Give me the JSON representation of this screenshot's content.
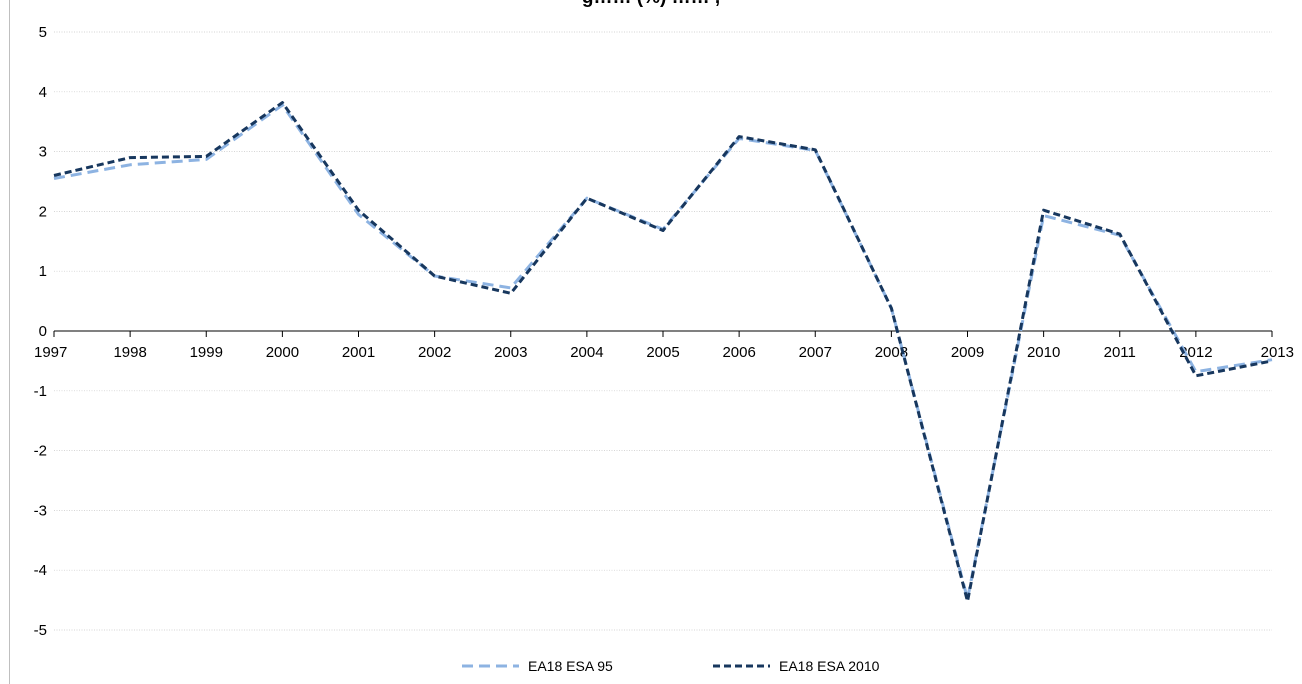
{
  "chart_data": {
    "type": "line",
    "title": "g…… (%) …… ,",
    "x": [
      "1997",
      "1998",
      "1999",
      "2000",
      "2001",
      "2002",
      "2003",
      "2004",
      "2005",
      "2006",
      "2007",
      "2008",
      "2009",
      "2010",
      "2011",
      "2012",
      "2013"
    ],
    "ylim": [
      -5,
      5
    ],
    "yticks": [
      5,
      4,
      3,
      2,
      1,
      0,
      -1,
      -2,
      -3,
      -4,
      -5
    ],
    "grid": true,
    "legend": "bottom-center",
    "series": [
      {
        "name": "EA18 ESA 95",
        "color": "#8db3e2",
        "values": [
          2.55,
          2.78,
          2.87,
          3.78,
          1.95,
          0.92,
          0.72,
          2.22,
          1.7,
          3.22,
          3.02,
          0.38,
          -4.48,
          1.93,
          1.6,
          -0.68,
          -0.48
        ]
      },
      {
        "name": "EA18 ESA 2010",
        "color": "#17375e",
        "values": [
          2.6,
          2.9,
          2.92,
          3.82,
          2.02,
          0.92,
          0.63,
          2.22,
          1.68,
          3.25,
          3.03,
          0.38,
          -4.52,
          2.02,
          1.62,
          -0.75,
          -0.5
        ]
      }
    ]
  }
}
